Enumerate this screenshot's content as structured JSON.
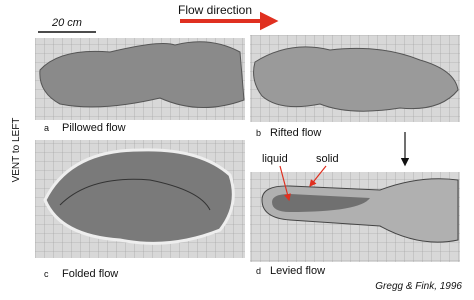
{
  "header": {
    "flow_direction": "Flow direction",
    "scale": "20 cm",
    "side_label": "VENT to LEFT"
  },
  "panels": [
    {
      "letter": "a",
      "caption": "Pillowed flow"
    },
    {
      "letter": "b",
      "caption": "Rifted flow"
    },
    {
      "letter": "c",
      "caption": "Folded flow"
    },
    {
      "letter": "d",
      "caption": "Levied flow"
    }
  ],
  "annotations": {
    "liquid": "liquid",
    "solid": "solid"
  },
  "credit": "Gregg & Fink, 1996"
}
